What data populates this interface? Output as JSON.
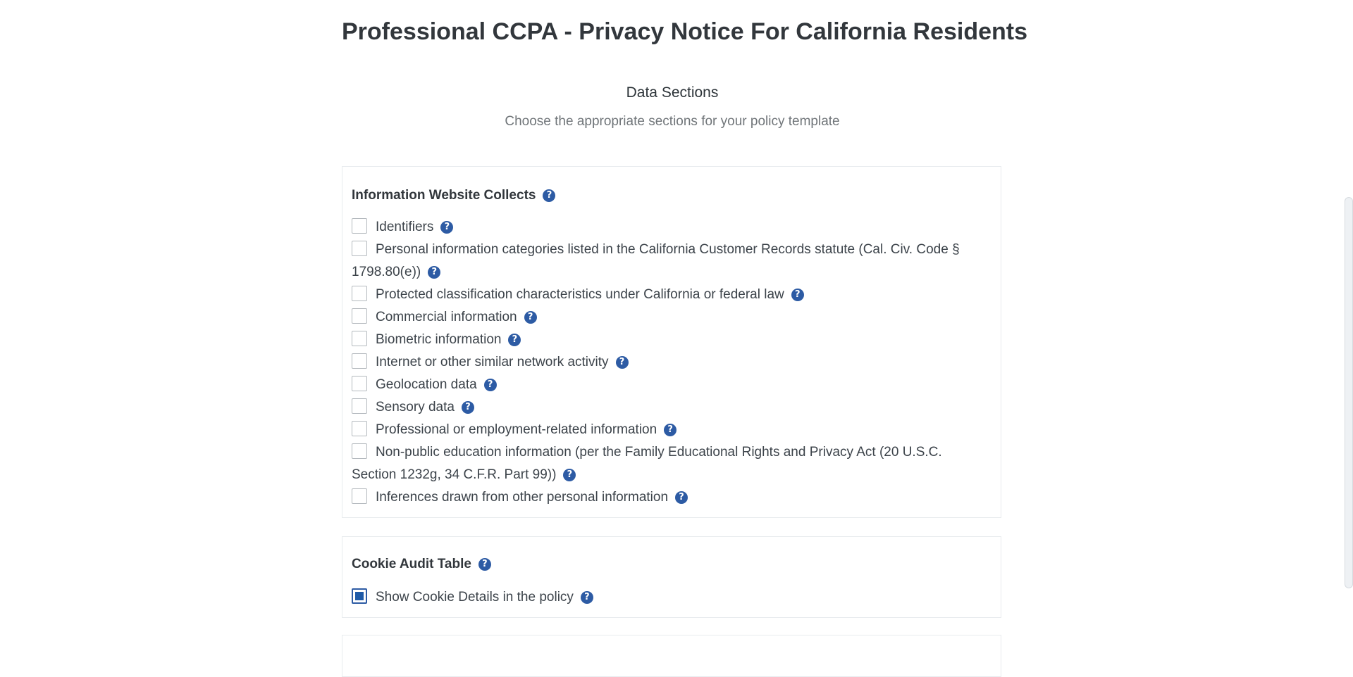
{
  "page": {
    "title": "Professional CCPA - Privacy Notice For California Residents",
    "section_heading": "Data Sections",
    "section_subtitle": "Choose the appropriate sections for your policy template"
  },
  "info_panel": {
    "title": "Information Website Collects",
    "help_glyph": "?",
    "items": [
      {
        "label": "Identifiers",
        "checked": false
      },
      {
        "label": "Personal information categories listed in the California Customer Records statute (Cal. Civ. Code § 1798.80(e))",
        "checked": false
      },
      {
        "label": "Protected classification characteristics under California or federal law",
        "checked": false
      },
      {
        "label": "Commercial information",
        "checked": false
      },
      {
        "label": "Biometric information",
        "checked": false
      },
      {
        "label": "Internet or other similar network activity",
        "checked": false
      },
      {
        "label": "Geolocation data",
        "checked": false
      },
      {
        "label": "Sensory data",
        "checked": false
      },
      {
        "label": "Professional or employment-related information",
        "checked": false
      },
      {
        "label": "Non-public education information (per the Family Educational Rights and Privacy Act (20 U.S.C. Section 1232g, 34 C.F.R. Part 99))",
        "checked": false
      },
      {
        "label": "Inferences drawn from other personal information",
        "checked": false
      }
    ]
  },
  "cookie_panel": {
    "title": "Cookie Audit Table",
    "help_glyph": "?",
    "items": [
      {
        "label": "Show Cookie Details in the policy",
        "checked": true
      }
    ]
  },
  "colors": {
    "accent": "#2d5ba4",
    "checkbox_fill": "#1e5aa8",
    "border": "#e8ebee",
    "text": "#3c434a",
    "muted": "#707579"
  },
  "icons": {
    "help": "question-circle-icon",
    "checkbox_checked": "checkbox-checked-icon"
  }
}
